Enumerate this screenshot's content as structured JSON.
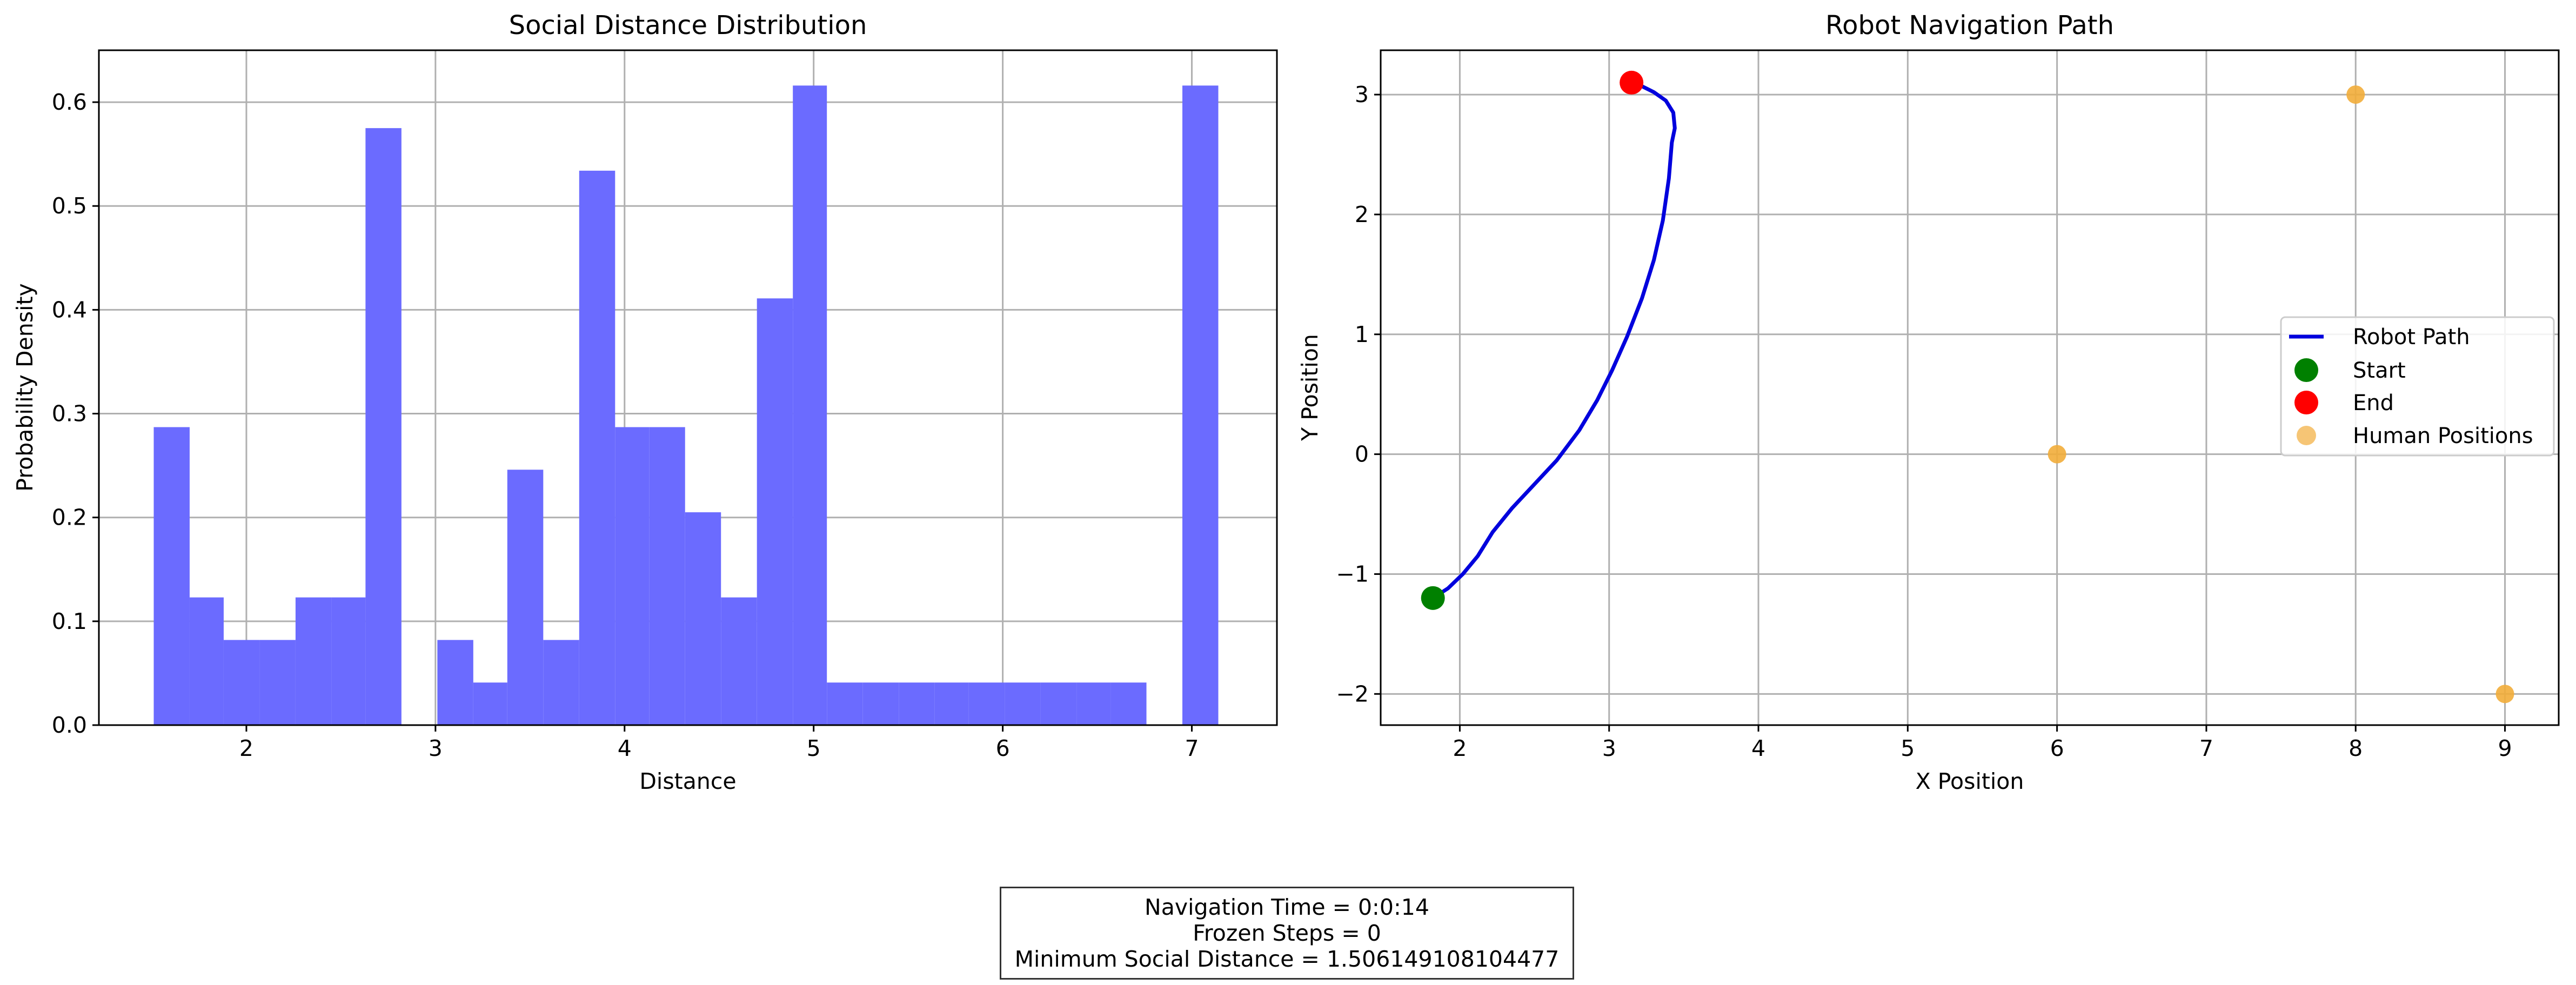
{
  "colors": {
    "hist_fill": "#6b6bff",
    "path": "#0000dd",
    "start": "#008000",
    "end": "#ff0000",
    "human": "#f2ad3a",
    "grid": "#b0b0b0"
  },
  "chart_data": [
    {
      "type": "bar",
      "title": "Social Distance Distribution",
      "xlabel": "Distance",
      "ylabel": "Probability Density",
      "xlim": [
        1.22,
        7.45
      ],
      "ylim": [
        0,
        0.65
      ],
      "grid": true,
      "x_ticks": [
        2,
        3,
        4,
        5,
        6,
        7
      ],
      "y_ticks": [
        0.0,
        0.1,
        0.2,
        0.3,
        0.4,
        0.5,
        0.6
      ],
      "x_tick_labels": [
        "2",
        "3",
        "4",
        "5",
        "6",
        "7"
      ],
      "y_tick_labels": [
        "0.0",
        "0.1",
        "0.2",
        "0.3",
        "0.4",
        "0.5",
        "0.6"
      ],
      "bin_edges": [
        1.51,
        1.7,
        1.88,
        2.07,
        2.26,
        2.45,
        2.63,
        2.82,
        3.01,
        3.2,
        3.38,
        3.57,
        3.76,
        3.95,
        4.13,
        4.32,
        4.51,
        4.7,
        4.89,
        5.07,
        5.26,
        5.45,
        5.64,
        5.82,
        6.01,
        6.2,
        6.39,
        6.57,
        6.76,
        6.95,
        7.14
      ],
      "values": [
        0.287,
        0.123,
        0.082,
        0.082,
        0.123,
        0.123,
        0.575,
        0.0,
        0.082,
        0.041,
        0.246,
        0.082,
        0.534,
        0.287,
        0.287,
        0.205,
        0.123,
        0.411,
        0.616,
        0.041,
        0.041,
        0.041,
        0.041,
        0.041,
        0.041,
        0.041,
        0.041,
        0.041,
        0.0,
        0.616
      ]
    },
    {
      "type": "line",
      "title": "Robot Navigation Path",
      "xlabel": "X Position",
      "ylabel": "Y Position",
      "xlim": [
        1.47,
        9.36
      ],
      "ylim": [
        -2.26,
        3.37
      ],
      "grid": true,
      "legend_position": "center-right",
      "x_ticks": [
        2,
        3,
        4,
        5,
        6,
        7,
        8,
        9
      ],
      "y_ticks": [
        -2,
        -1,
        0,
        1,
        2,
        3
      ],
      "x_tick_labels": [
        "2",
        "3",
        "4",
        "5",
        "6",
        "7",
        "8",
        "9"
      ],
      "y_tick_labels": [
        "−2",
        "−1",
        "0",
        "1",
        "2",
        "3"
      ],
      "series": [
        {
          "name": "Robot Path",
          "kind": "line",
          "x": [
            1.82,
            1.92,
            2.02,
            2.12,
            2.22,
            2.35,
            2.5,
            2.65,
            2.8,
            2.92,
            3.02,
            3.12,
            3.22,
            3.3,
            3.36,
            3.4,
            3.42,
            3.44,
            3.43,
            3.38,
            3.3,
            3.22,
            3.15
          ],
          "y": [
            -1.2,
            -1.12,
            -1.0,
            -0.85,
            -0.65,
            -0.45,
            -0.25,
            -0.05,
            0.2,
            0.45,
            0.7,
            0.98,
            1.3,
            1.62,
            1.95,
            2.3,
            2.6,
            2.72,
            2.85,
            2.95,
            3.02,
            3.07,
            3.1
          ]
        },
        {
          "name": "Start",
          "kind": "marker",
          "x": [
            1.82
          ],
          "y": [
            -1.2
          ]
        },
        {
          "name": "End",
          "kind": "marker",
          "x": [
            3.15
          ],
          "y": [
            3.1
          ]
        },
        {
          "name": "Human Positions",
          "kind": "marker",
          "x": [
            6,
            8,
            9
          ],
          "y": [
            0,
            3,
            -2
          ]
        }
      ]
    }
  ],
  "stats": {
    "lines": [
      "Navigation Time = 0:0:14",
      "Frozen Steps = 0",
      "Minimum Social Distance = 1.506149108104477"
    ]
  }
}
